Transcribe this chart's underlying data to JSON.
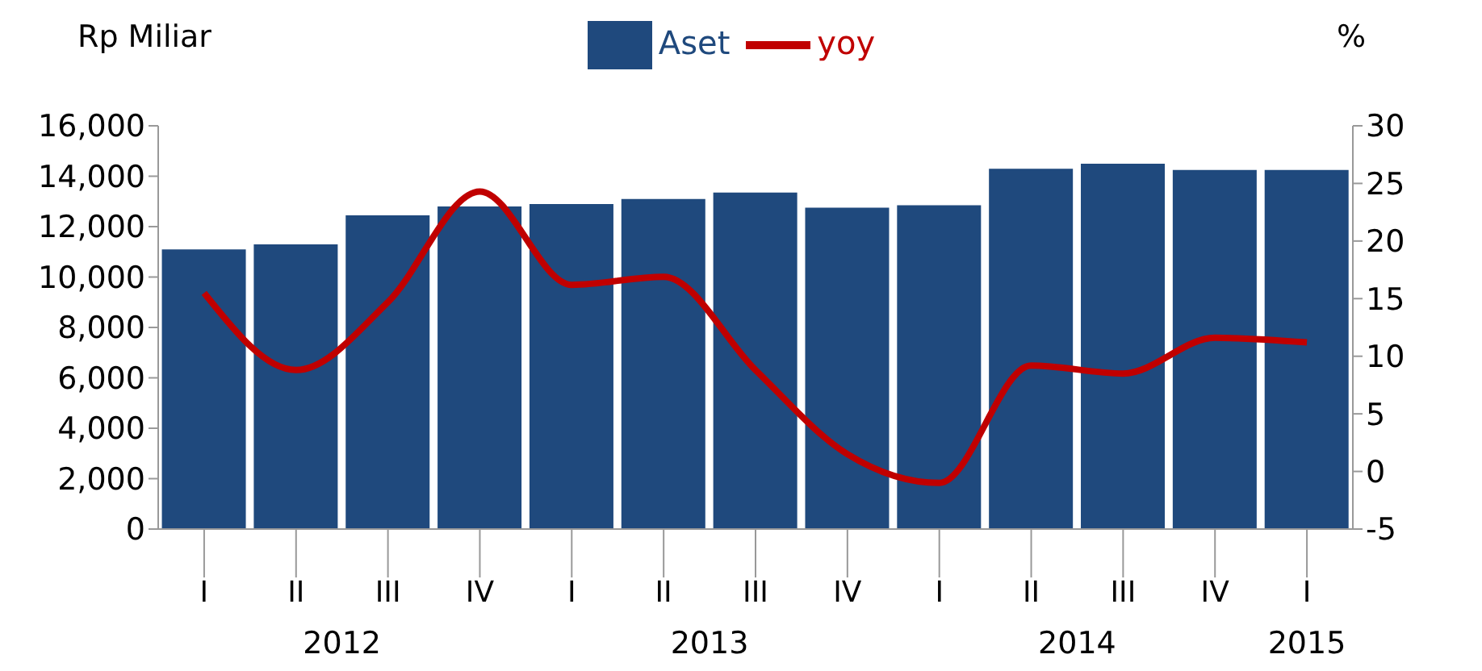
{
  "chart_data": {
    "type": "bar",
    "ylabel": "Rp Miliar",
    "y2label": "%",
    "categories": [
      "I",
      "II",
      "III",
      "IV",
      "I",
      "II",
      "III",
      "IV",
      "I",
      "II",
      "III",
      "IV",
      "I"
    ],
    "series": [
      {
        "name": "Aset",
        "color": "#1f497d",
        "values": [
          11100,
          11300,
          12450,
          12800,
          12900,
          13100,
          13350,
          12750,
          12850,
          14300,
          14500,
          14250,
          14250
        ]
      },
      {
        "name": "yoy",
        "type": "line",
        "axis": "y2",
        "color": "#c00000",
        "values": [
          15.5,
          8.8,
          14.7,
          24.3,
          16.2,
          16.9,
          8.8,
          1.5,
          -1,
          9.2,
          8.5,
          11.6,
          11.2
        ]
      }
    ],
    "ylim": [
      0,
      16000
    ],
    "yticks": [
      0,
      {
        "value": 2000,
        "label": "2,000"
      },
      {
        "value": 4000,
        "label": "4,000"
      },
      {
        "value": 6000,
        "label": "6,000"
      },
      {
        "value": 8000,
        "label": "8,000"
      },
      {
        "value": 10000,
        "label": "10,000"
      },
      {
        "value": 12000,
        "label": "12,000"
      },
      {
        "value": 14000,
        "label": "14,000"
      },
      {
        "value": 16000,
        "label": "16,000"
      }
    ],
    "y2lim": [
      -5,
      30
    ],
    "y2ticks": [
      -5,
      0,
      5,
      10,
      15,
      20,
      25,
      30
    ],
    "annotations": [
      "2012",
      "2013",
      "2014",
      "2015"
    ],
    "legend": "top",
    "grid": false,
    "marker": "none"
  }
}
